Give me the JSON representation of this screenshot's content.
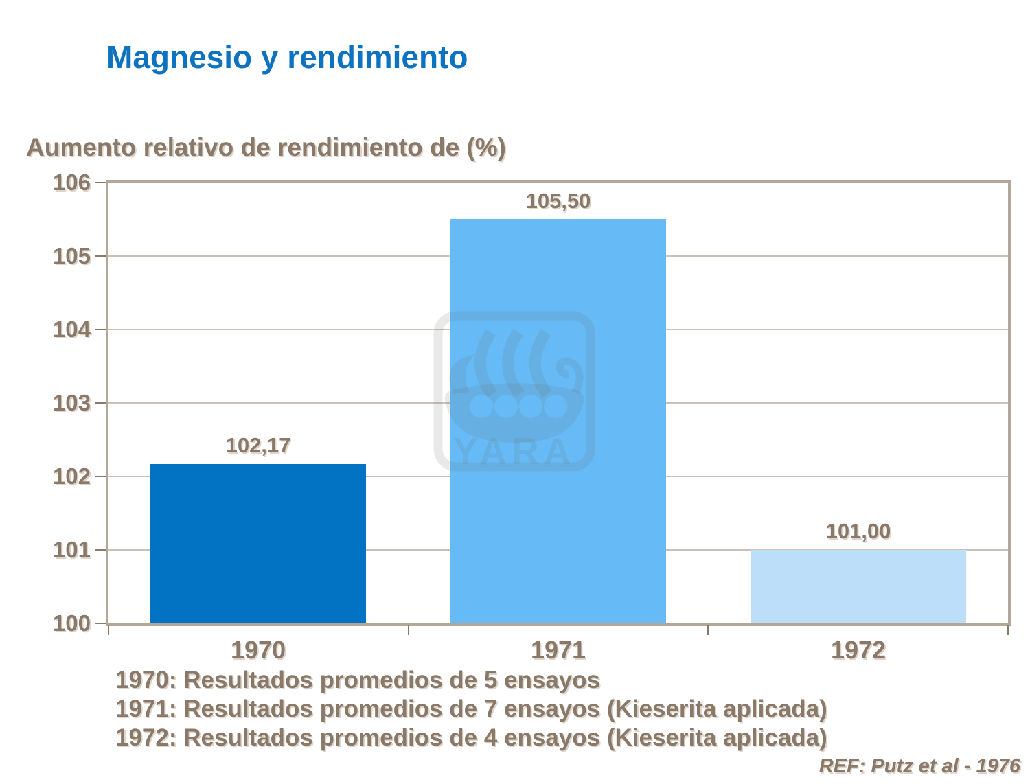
{
  "title": "Magnesio y rendimiento",
  "colors": {
    "title_blue": "#0d72c0",
    "text_brown": "#8a7968",
    "grid_tan": "#a0907c",
    "frame_tan": "#b3a79a"
  },
  "chart_data": {
    "type": "bar",
    "title": "Aumento relativo de rendimiento de (%)",
    "categories": [
      "1970",
      "1971",
      "1972"
    ],
    "values": [
      102.17,
      105.5,
      101.0
    ],
    "value_labels": [
      "102,17",
      "105,50",
      "101,00"
    ],
    "bar_colors": [
      "#0272c3",
      "#66bbf7",
      "#bcdef8"
    ],
    "ylim": [
      100,
      106
    ],
    "y_ticks": [
      106,
      105,
      104,
      103,
      102,
      101,
      100
    ],
    "xlabel": "",
    "ylabel": "Aumento relativo de rendimiento de (%)",
    "grid": "horizontal",
    "legend": "none"
  },
  "watermark": {
    "text": "YARA"
  },
  "footnotes": [
    "1970: Resultados promedios de 5 ensayos",
    "1971: Resultados promedios de 7 ensayos (Kieserita aplicada)",
    "1972: Resultados promedios de 4 ensayos (Kieserita aplicada)"
  ],
  "reference": "REF: Putz et al - 1976"
}
